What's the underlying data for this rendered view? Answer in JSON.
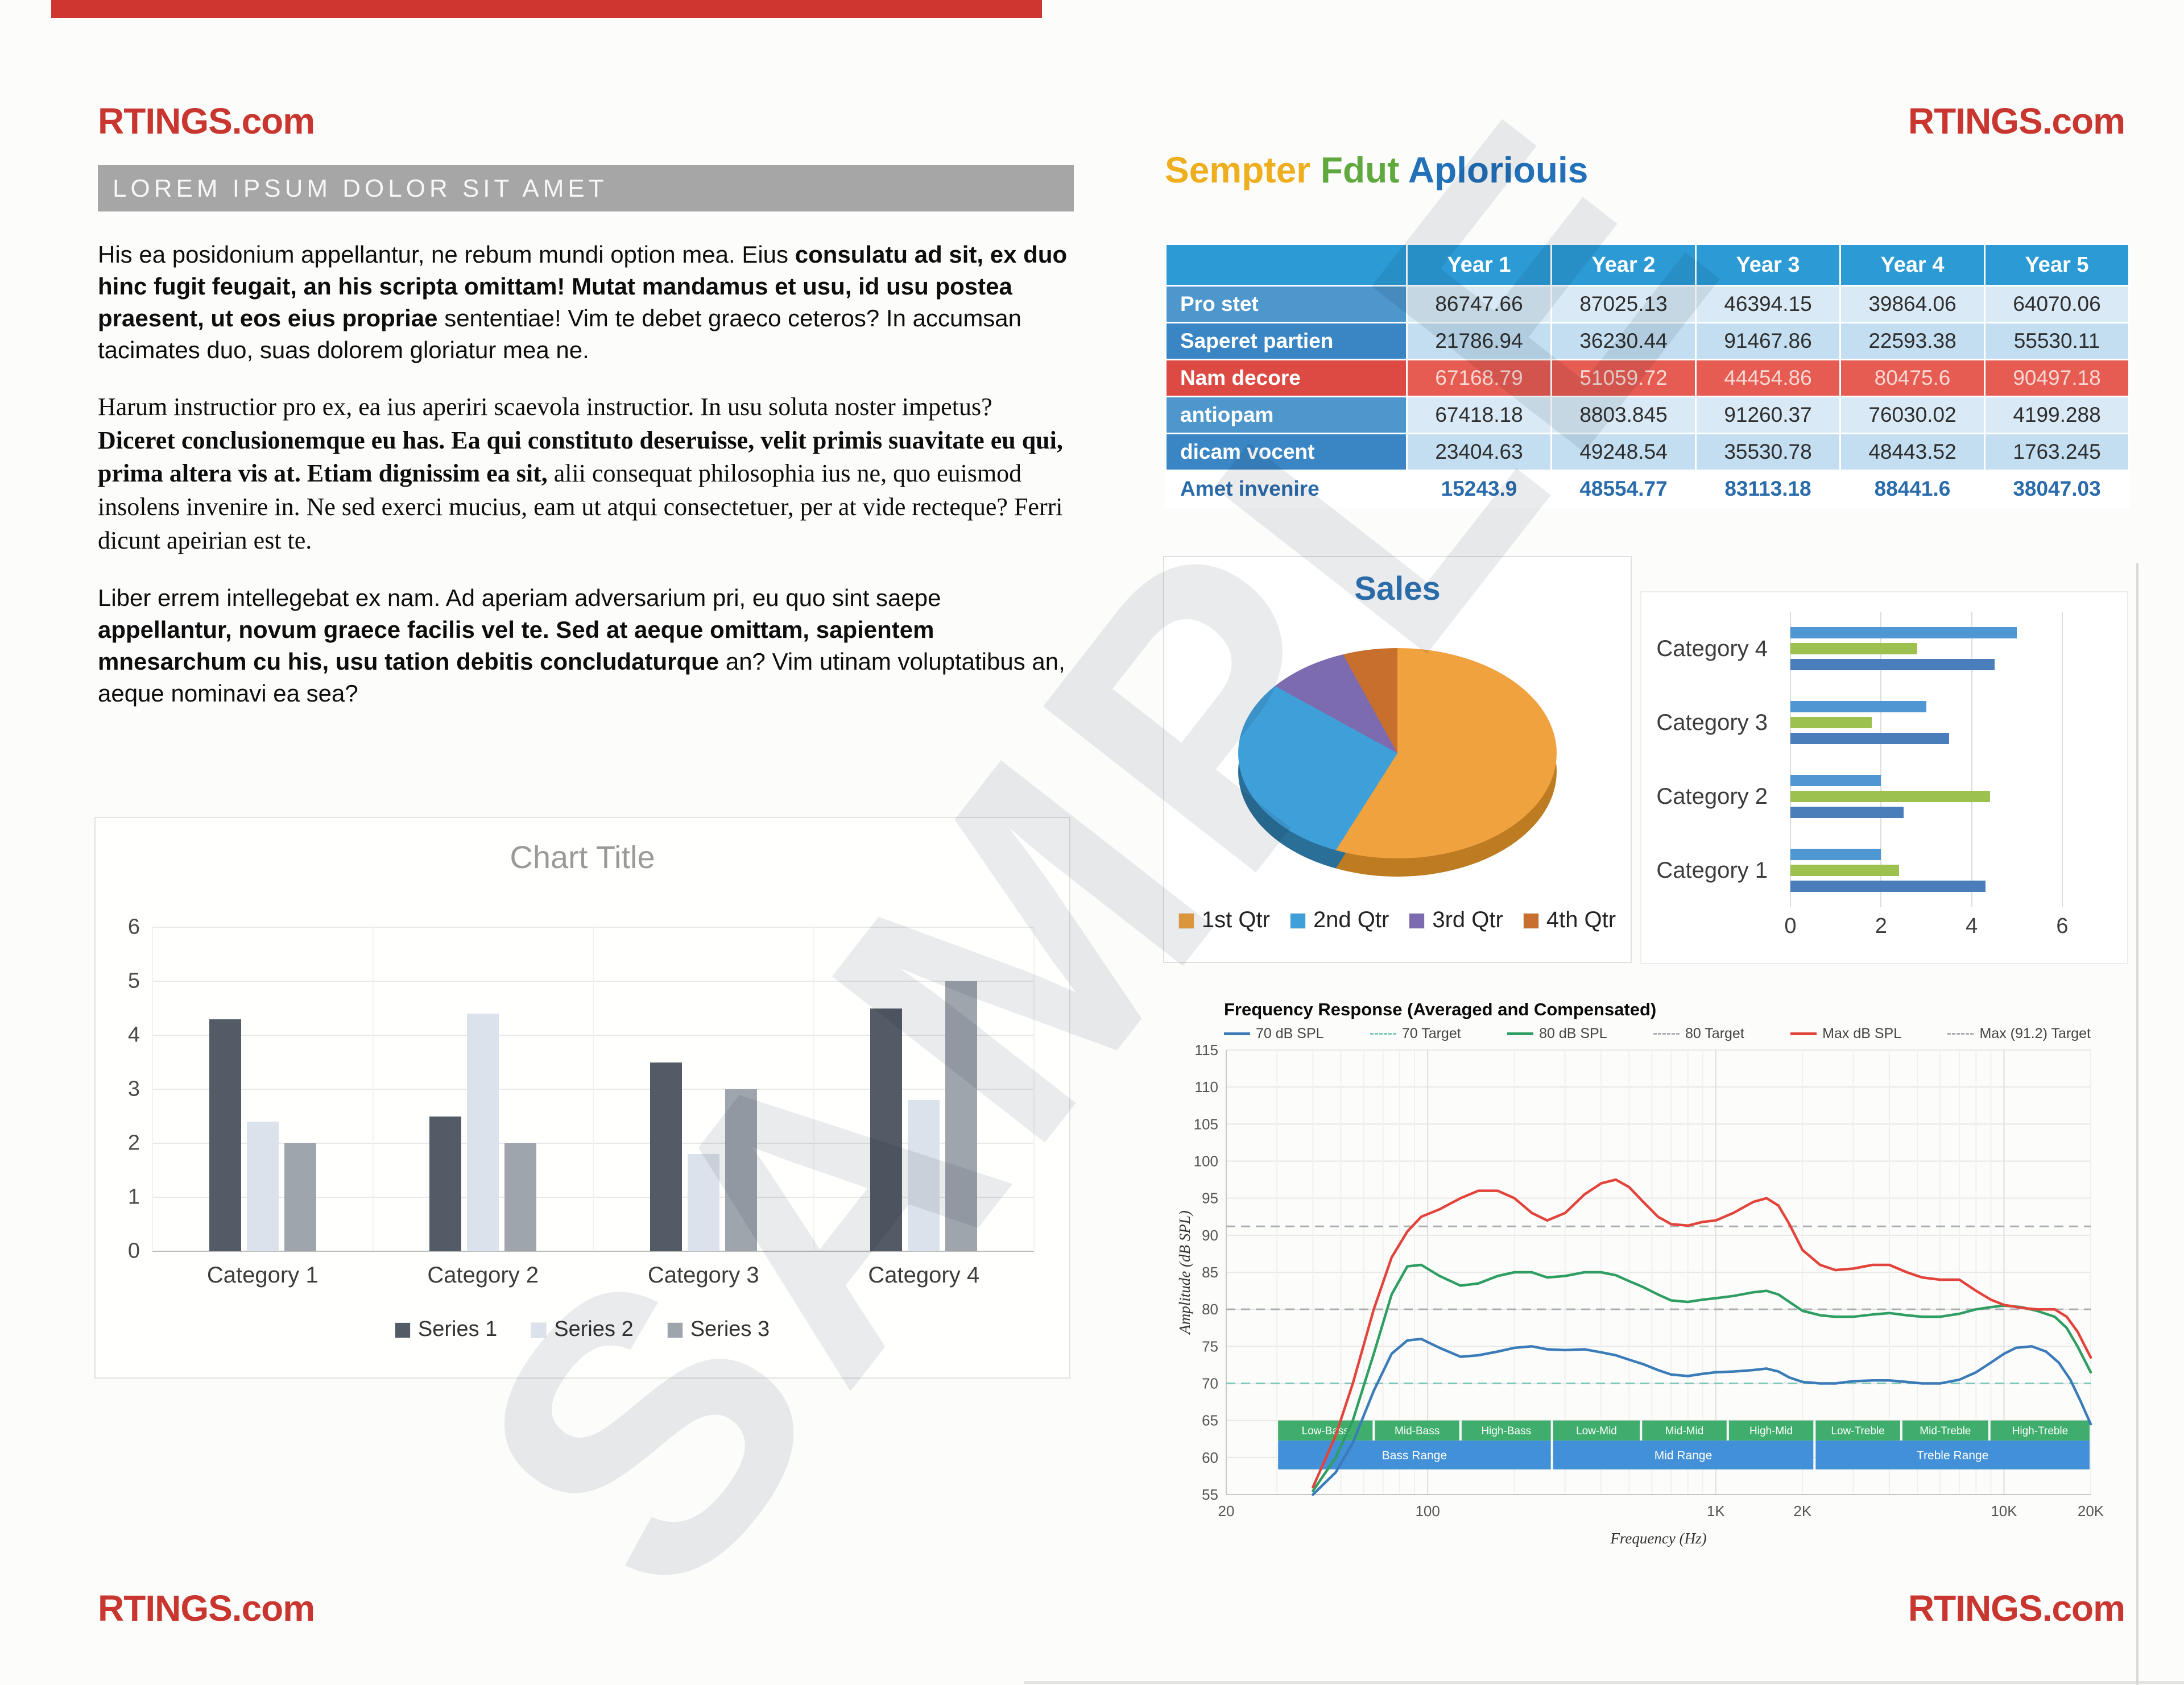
{
  "page": {
    "brand": "RTINGS.com",
    "watermark": "SAMPLE"
  },
  "left": {
    "header_bar": "LOREM IPSUM DOLOR SIT AMET",
    "paragraphs": [
      {
        "font": "sans",
        "segments": [
          {
            "text": "His ea posidonium appellantur, ne rebum mundi option mea. Eius ",
            "bold": false
          },
          {
            "text": "consulatu ad sit, ex duo hinc fugit feugait, an his scripta omittam! Mutat mandamus et usu, id usu postea praesent, ut eos eius propriae ",
            "bold": true
          },
          {
            "text": "sententiae! Vim te debet graeco ceteros? In accumsan tacimates duo, suas dolorem gloriatur mea ne.",
            "bold": false
          }
        ]
      },
      {
        "font": "serif",
        "segments": [
          {
            "text": "Harum instructior pro ex, ea ius aperiri scaevola instructior. In usu soluta noster impetus? ",
            "bold": false
          },
          {
            "text": "Diceret conclusionemque eu has. Ea qui constituto deseruisse, velit primis suavitate eu qui, prima altera vis at. Etiam dignissim ea sit, ",
            "bold": true
          },
          {
            "text": "alii consequat philosophia ius ne, quo euismod insolens invenire in. Ne sed exerci mucius, eam ut atqui consectetuer, per at vide recteque? Ferri dicunt apeirian est te.",
            "bold": false
          }
        ]
      },
      {
        "font": "sans",
        "segments": [
          {
            "text": "Liber errem intellegebat ex nam. Ad aperiam adversarium pri, eu quo sint saepe ",
            "bold": false
          },
          {
            "text": "appellantur, novum graece facilis vel te. Sed at aeque omittam, sapientem mnesarchum cu his, usu tation debitis concludaturque ",
            "bold": true
          },
          {
            "text": "an? Vim utinam voluptatibus an, aeque nominavi ea sea?",
            "bold": false
          }
        ]
      }
    ]
  },
  "right": {
    "heading": [
      {
        "text": "Sempter",
        "color": "#efae1d"
      },
      {
        "text": " Fdut",
        "color": "#5fa93f"
      },
      {
        "text": " Aploriouis",
        "color": "#2170b8"
      }
    ],
    "table": {
      "columns": [
        "Year 1",
        "Year 2",
        "Year 3",
        "Year 4",
        "Year 5"
      ],
      "rows": [
        {
          "label": "Pro stet",
          "variant": "odd",
          "values": [
            "86747.66",
            "87025.13",
            "46394.15",
            "39864.06",
            "64070.06"
          ]
        },
        {
          "label": "Saperet partien",
          "variant": "even",
          "values": [
            "21786.94",
            "36230.44",
            "91467.86",
            "22593.38",
            "55530.11"
          ]
        },
        {
          "label": "Nam decore",
          "variant": "red",
          "values": [
            "67168.79",
            "51059.72",
            "44454.86",
            "80475.6",
            "90497.18"
          ]
        },
        {
          "label": "antiopam",
          "variant": "odd",
          "values": [
            "67418.18",
            "8803.845",
            "91260.37",
            "76030.02",
            "4199.288"
          ]
        },
        {
          "label": "dicam vocent",
          "variant": "even",
          "values": [
            "23404.63",
            "49248.54",
            "35530.78",
            "48443.52",
            "1763.245"
          ]
        },
        {
          "label": "Amet invenire",
          "variant": "footer",
          "values": [
            "15243.9",
            "48554.77",
            "83113.18",
            "88441.6",
            "38047.03"
          ]
        }
      ]
    }
  },
  "chart_data": [
    {
      "id": "column",
      "type": "bar",
      "title": "Chart Title",
      "categories": [
        "Category 1",
        "Category 2",
        "Category 3",
        "Category 4"
      ],
      "series": [
        {
          "name": "Series 1",
          "color": "#535c66",
          "values": [
            4.3,
            2.5,
            3.5,
            4.5
          ]
        },
        {
          "name": "Series 2",
          "color": "#dce2eb",
          "values": [
            2.4,
            4.4,
            1.8,
            2.8
          ]
        },
        {
          "name": "Series 3",
          "color": "#9fa5ad",
          "values": [
            2,
            2,
            3,
            5
          ]
        }
      ],
      "ylim": [
        0,
        6
      ],
      "ytick_step": 1,
      "grid": true,
      "legend_position": "bottom"
    },
    {
      "id": "pie",
      "type": "pie",
      "title": "Sales",
      "labels": [
        "1st Qtr",
        "2nd Qtr",
        "3rd Qtr",
        "4th Qtr"
      ],
      "values": [
        59,
        24,
        9,
        8
      ],
      "colors": [
        "#f0a23f",
        "#3f9fd8",
        "#7d6bb0",
        "#c86f2e"
      ],
      "rim_colors": [
        "#bd7b22",
        "#2a6f98",
        "#564a7e",
        "#93511e"
      ],
      "legend_position": "bottom"
    },
    {
      "id": "hbar",
      "type": "bar",
      "orientation": "horizontal",
      "categories": [
        "Category 1",
        "Category 2",
        "Category 3",
        "Category 4"
      ],
      "series": [
        {
          "name": "Series 1",
          "color": "#4a7ebb",
          "values": [
            4.3,
            2.5,
            3.5,
            4.5
          ]
        },
        {
          "name": "Series 2",
          "color": "#9dc14f",
          "values": [
            2.4,
            4.4,
            1.8,
            2.8
          ]
        },
        {
          "name": "Series 3",
          "color": "#4f97d3",
          "values": [
            2,
            2,
            3,
            5
          ]
        }
      ],
      "xlim": [
        0,
        6
      ],
      "xticks": [
        0,
        2,
        4,
        6
      ],
      "grid": true
    },
    {
      "id": "fr",
      "type": "line",
      "title": "Frequency Response (Averaged and Compensated)",
      "xlabel": "Frequency (Hz)",
      "ylabel": "Amplitude (dB SPL)",
      "xscale": "log",
      "xlim": [
        20,
        20000
      ],
      "ylim": [
        55,
        115
      ],
      "ytick_step": 5,
      "xticks": [
        {
          "f": 20,
          "label": "20"
        },
        {
          "f": 100,
          "label": "100"
        },
        {
          "f": 1000,
          "label": "1K"
        },
        {
          "f": 2000,
          "label": "2K"
        },
        {
          "f": 10000,
          "label": "10K"
        },
        {
          "f": 20000,
          "label": "20K"
        }
      ],
      "legend": [
        {
          "label": "70 dB SPL",
          "color": "#3b7cb8",
          "dash": false
        },
        {
          "label": "70 Target",
          "color": "#7cc9b9",
          "dash": true
        },
        {
          "label": "80 dB SPL",
          "color": "#2f9e63",
          "dash": false
        },
        {
          "label": "80 Target",
          "color": "#a9aeb3",
          "dash": true
        },
        {
          "label": "Max dB SPL",
          "color": "#e2443c",
          "dash": false
        },
        {
          "label": "Max (91.2) Target",
          "color": "#a9aeb3",
          "dash": true
        }
      ],
      "targets": [
        {
          "label": "70 Target",
          "value": 70,
          "color": "#7cc9b9"
        },
        {
          "label": "80 Target",
          "value": 80,
          "color": "#a9aeb3"
        },
        {
          "label": "Max (91.2) Target",
          "value": 91.2,
          "color": "#a9aeb3"
        }
      ],
      "series": [
        {
          "name": "70 dB SPL",
          "color": "#3b7cb8",
          "points": [
            [
              40,
              55
            ],
            [
              48,
              58
            ],
            [
              55,
              62
            ],
            [
              65,
              69
            ],
            [
              75,
              74
            ],
            [
              85,
              75.8
            ],
            [
              95,
              76
            ],
            [
              110,
              74.8
            ],
            [
              130,
              73.6
            ],
            [
              150,
              73.8
            ],
            [
              175,
              74.3
            ],
            [
              200,
              74.8
            ],
            [
              230,
              75
            ],
            [
              260,
              74.6
            ],
            [
              300,
              74.5
            ],
            [
              350,
              74.6
            ],
            [
              400,
              74.2
            ],
            [
              450,
              73.8
            ],
            [
              500,
              73.2
            ],
            [
              560,
              72.6
            ],
            [
              630,
              71.8
            ],
            [
              700,
              71.2
            ],
            [
              800,
              71
            ],
            [
              900,
              71.3
            ],
            [
              1000,
              71.5
            ],
            [
              1150,
              71.6
            ],
            [
              1350,
              71.8
            ],
            [
              1500,
              72
            ],
            [
              1650,
              71.6
            ],
            [
              1800,
              70.8
            ],
            [
              2000,
              70.2
            ],
            [
              2300,
              70
            ],
            [
              2600,
              70
            ],
            [
              3000,
              70.3
            ],
            [
              3500,
              70.4
            ],
            [
              4000,
              70.4
            ],
            [
              4600,
              70.2
            ],
            [
              5200,
              70
            ],
            [
              6000,
              70
            ],
            [
              7000,
              70.5
            ],
            [
              8000,
              71.5
            ],
            [
              9000,
              72.8
            ],
            [
              10000,
              74
            ],
            [
              11000,
              74.8
            ],
            [
              12500,
              75
            ],
            [
              14000,
              74.3
            ],
            [
              15500,
              72.8
            ],
            [
              17000,
              70.5
            ],
            [
              18500,
              67.5
            ],
            [
              20000,
              64.5
            ]
          ]
        },
        {
          "name": "80 dB SPL",
          "color": "#2f9e63",
          "points": [
            [
              40,
              55.5
            ],
            [
              48,
              60
            ],
            [
              55,
              65
            ],
            [
              65,
              74
            ],
            [
              75,
              82
            ],
            [
              85,
              85.8
            ],
            [
              95,
              86
            ],
            [
              110,
              84.5
            ],
            [
              130,
              83.2
            ],
            [
              150,
              83.5
            ],
            [
              175,
              84.5
            ],
            [
              200,
              85
            ],
            [
              230,
              85
            ],
            [
              260,
              84.3
            ],
            [
              300,
              84.5
            ],
            [
              350,
              85
            ],
            [
              400,
              85
            ],
            [
              450,
              84.6
            ],
            [
              500,
              83.8
            ],
            [
              560,
              83
            ],
            [
              630,
              82
            ],
            [
              700,
              81.2
            ],
            [
              800,
              81
            ],
            [
              900,
              81.3
            ],
            [
              1000,
              81.5
            ],
            [
              1150,
              81.8
            ],
            [
              1350,
              82.3
            ],
            [
              1500,
              82.5
            ],
            [
              1650,
              82
            ],
            [
              1800,
              81
            ],
            [
              2000,
              79.8
            ],
            [
              2300,
              79.2
            ],
            [
              2600,
              79
            ],
            [
              3000,
              79
            ],
            [
              3500,
              79.3
            ],
            [
              4000,
              79.5
            ],
            [
              4600,
              79.2
            ],
            [
              5200,
              79
            ],
            [
              6000,
              79
            ],
            [
              7000,
              79.4
            ],
            [
              8000,
              80
            ],
            [
              9000,
              80.3
            ],
            [
              10000,
              80.5
            ],
            [
              11500,
              80.3
            ],
            [
              13000,
              79.8
            ],
            [
              15000,
              79
            ],
            [
              16500,
              77.5
            ],
            [
              18000,
              75
            ],
            [
              20000,
              71.5
            ]
          ]
        },
        {
          "name": "Max dB SPL",
          "color": "#e2443c",
          "points": [
            [
              40,
              56
            ],
            [
              48,
              63
            ],
            [
              55,
              70
            ],
            [
              65,
              80
            ],
            [
              75,
              87
            ],
            [
              85,
              90.5
            ],
            [
              95,
              92.5
            ],
            [
              110,
              93.5
            ],
            [
              130,
              95
            ],
            [
              150,
              96
            ],
            [
              175,
              96
            ],
            [
              200,
              95
            ],
            [
              230,
              93
            ],
            [
              260,
              92
            ],
            [
              300,
              93
            ],
            [
              350,
              95.5
            ],
            [
              400,
              97
            ],
            [
              450,
              97.5
            ],
            [
              500,
              96.5
            ],
            [
              560,
              94.5
            ],
            [
              630,
              92.5
            ],
            [
              700,
              91.5
            ],
            [
              800,
              91.3
            ],
            [
              900,
              91.8
            ],
            [
              1000,
              92
            ],
            [
              1150,
              93
            ],
            [
              1350,
              94.5
            ],
            [
              1500,
              95
            ],
            [
              1650,
              94
            ],
            [
              1800,
              91.5
            ],
            [
              2000,
              88
            ],
            [
              2300,
              86
            ],
            [
              2600,
              85.3
            ],
            [
              3000,
              85.5
            ],
            [
              3500,
              86
            ],
            [
              4000,
              86
            ],
            [
              4600,
              85
            ],
            [
              5200,
              84.3
            ],
            [
              6000,
              84
            ],
            [
              7000,
              84
            ],
            [
              8000,
              82.5
            ],
            [
              9000,
              81.3
            ],
            [
              10000,
              80.6
            ],
            [
              11500,
              80.2
            ],
            [
              13000,
              80
            ],
            [
              15000,
              80
            ],
            [
              16500,
              79
            ],
            [
              18000,
              77
            ],
            [
              20000,
              73.5
            ]
          ]
        }
      ],
      "bands": {
        "sub": {
          "color": "#3fae6c",
          "db": [
            62.3,
            65.0
          ],
          "boundaries": [
            30,
            65,
            130,
            270,
            550,
            1100,
            2200,
            4400,
            8900,
            20000
          ],
          "labels": [
            "Low-Bass",
            "Mid-Bass",
            "High-Bass",
            "Low-Mid",
            "Mid-Mid",
            "High-Mid",
            "Low-Treble",
            "Mid-Treble",
            "High-Treble"
          ]
        },
        "ranges": {
          "color": "#4190d8",
          "db": [
            58.4,
            62.3
          ],
          "boundaries": [
            30,
            270,
            2200,
            20000
          ],
          "labels": [
            "Bass Range",
            "Mid Range",
            "Treble Range"
          ]
        }
      }
    }
  ]
}
